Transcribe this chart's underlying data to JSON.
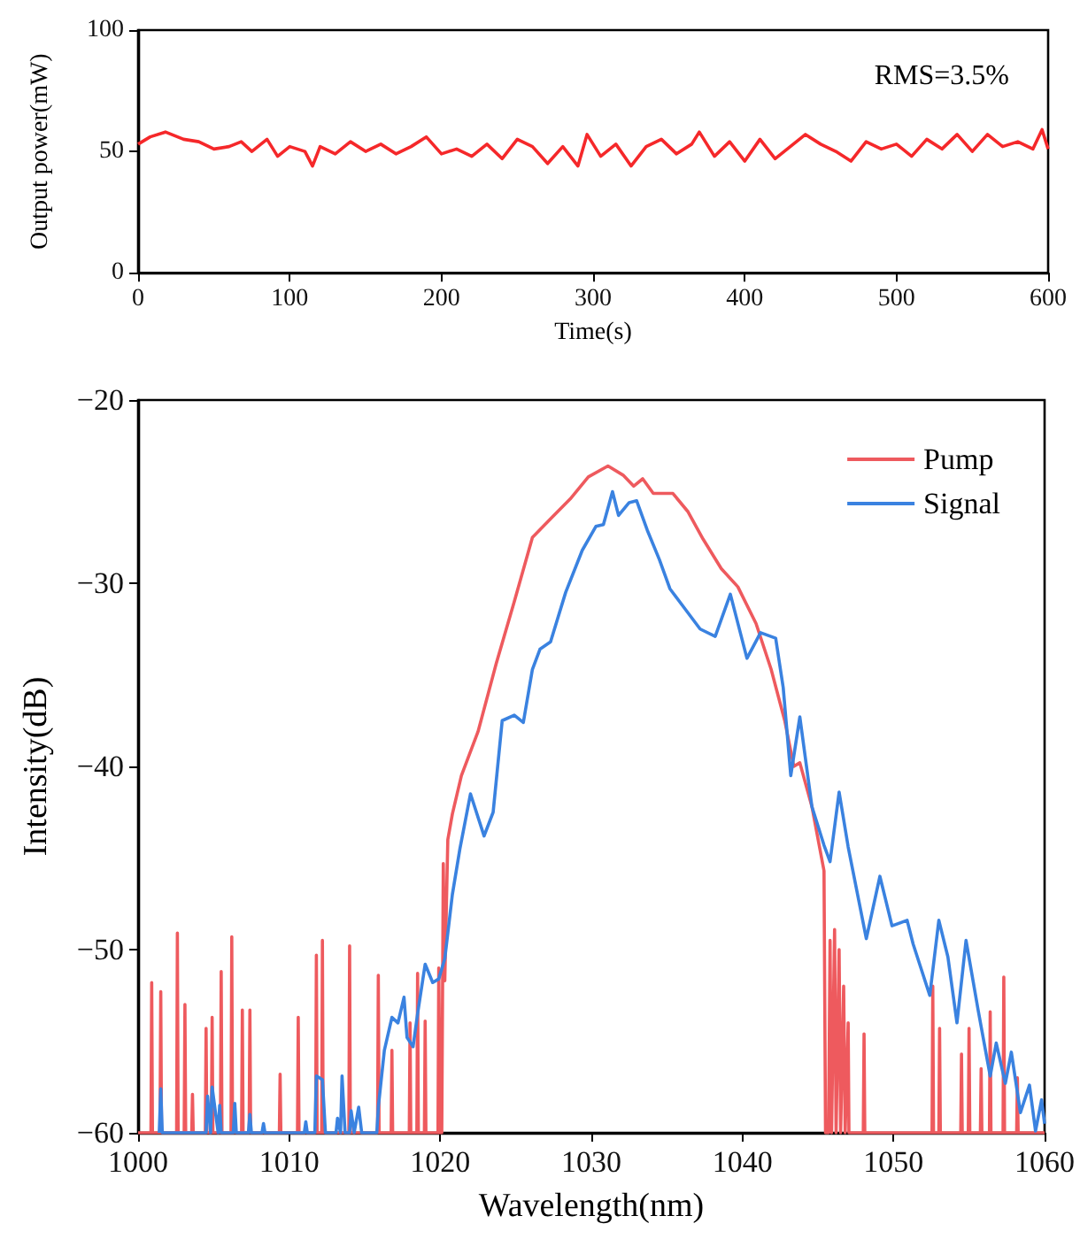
{
  "chart_data": [
    {
      "type": "line",
      "xlabel": "Time(s)",
      "ylabel": "Output power(mW)",
      "annotations": [
        "RMS=3.5%"
      ],
      "xlim": [
        0,
        600
      ],
      "xticks": [
        0,
        100,
        200,
        300,
        400,
        500,
        600
      ],
      "ylim": [
        0,
        100
      ],
      "yticks": [
        0,
        50,
        100
      ],
      "grid": false,
      "legend": false,
      "marker": "none",
      "series": [
        {
          "color": "#f5282a",
          "x": [
            0,
            8,
            18,
            30,
            40,
            50,
            60,
            68,
            75,
            85,
            92,
            100,
            110,
            115,
            120,
            130,
            140,
            150,
            160,
            170,
            180,
            190,
            200,
            210,
            220,
            230,
            240,
            250,
            260,
            270,
            280,
            290,
            296,
            305,
            315,
            325,
            335,
            345,
            355,
            365,
            370,
            380,
            390,
            400,
            410,
            420,
            430,
            440,
            450,
            460,
            470,
            480,
            490,
            500,
            510,
            520,
            530,
            540,
            550,
            560,
            570,
            580,
            590,
            596,
            600
          ],
          "values": [
            53,
            56,
            58,
            55,
            54,
            51,
            52,
            54,
            50,
            55,
            48,
            52,
            50,
            44,
            52,
            49,
            54,
            50,
            53,
            49,
            52,
            56,
            49,
            51,
            48,
            53,
            47,
            55,
            52,
            45,
            52,
            44,
            57,
            48,
            53,
            44,
            52,
            55,
            49,
            53,
            58,
            48,
            54,
            46,
            55,
            47,
            52,
            57,
            53,
            50,
            46,
            54,
            51,
            53,
            48,
            55,
            51,
            57,
            50,
            57,
            52,
            54,
            51,
            59,
            51
          ]
        }
      ]
    },
    {
      "type": "line",
      "xlabel": "Wavelength(nm)",
      "ylabel": "Intensity(dB)",
      "xlim": [
        1000,
        1060
      ],
      "xticks": [
        1000,
        1010,
        1020,
        1030,
        1040,
        1050,
        1060
      ],
      "ylim": [
        -60,
        -20
      ],
      "yticks": [
        -60,
        -50,
        -40,
        -30,
        -20
      ],
      "grid": false,
      "legend": "top right",
      "marker": "none",
      "series": [
        {
          "name": "Pump",
          "color": "#ee5a5e",
          "x": [
            1000,
            1000.85,
            1000.9,
            1000.95,
            1001.45,
            1001.5,
            1001.55,
            1002.55,
            1002.6,
            1002.65,
            1003.05,
            1003.1,
            1003.15,
            1003.55,
            1003.6,
            1003.65,
            1004.45,
            1004.5,
            1004.55,
            1004.85,
            1004.9,
            1004.95,
            1005.45,
            1005.5,
            1005.55,
            1006.15,
            1006.2,
            1006.25,
            1006.85,
            1006.9,
            1006.95,
            1007.35,
            1007.4,
            1007.45,
            1009.35,
            1009.4,
            1009.45,
            1010.55,
            1010.6,
            1010.65,
            1011.75,
            1011.8,
            1011.85,
            1012.15,
            1012.2,
            1012.25,
            1013.95,
            1014,
            1014.05,
            1015.85,
            1015.9,
            1015.95,
            1016.75,
            1016.8,
            1016.85,
            1017.95,
            1018,
            1018.05,
            1018.45,
            1018.5,
            1018.55,
            1018.95,
            1019,
            1019.05,
            1019.85,
            1019.9,
            1020,
            1020.1,
            1020.2,
            1020.3,
            1020.5,
            1020.8,
            1021.4,
            1022.5,
            1023.7,
            1024.9,
            1026.1,
            1027.4,
            1028.6,
            1029.8,
            1031.1,
            1032.1,
            1032.8,
            1033.4,
            1034.1,
            1035.4,
            1036.4,
            1037.4,
            1038.6,
            1039.7,
            1040.9,
            1041.9,
            1042.8,
            1043.4,
            1043.8,
            1044.6,
            1045.4,
            1045.5,
            1045.7,
            1045.8,
            1045.9,
            1046.1,
            1046.2,
            1046.4,
            1046.5,
            1046.7,
            1046.8,
            1047,
            1047.05,
            1048,
            1048.05,
            1048.1,
            1052.55,
            1052.6,
            1052.65,
            1053,
            1053.05,
            1053.1,
            1054.45,
            1054.5,
            1054.55,
            1054.95,
            1055,
            1055.05,
            1055.75,
            1055.8,
            1055.85,
            1056.35,
            1056.4,
            1056.45,
            1057.25,
            1057.3,
            1057.35,
            1058.15,
            1058.2,
            1058.25,
            1060
          ],
          "values": [
            -60,
            -60,
            -51.8,
            -60,
            -60,
            -52.3,
            -60,
            -60,
            -49.1,
            -60,
            -60,
            -53,
            -60,
            -60,
            -57.9,
            -60,
            -60,
            -54.3,
            -60,
            -60,
            -53.7,
            -60,
            -60,
            -51.2,
            -60,
            -60,
            -49.3,
            -60,
            -60,
            -53.3,
            -60,
            -60,
            -53.3,
            -60,
            -60,
            -56.8,
            -60,
            -60,
            -53.7,
            -60,
            -60,
            -50.3,
            -60,
            -60,
            -49.5,
            -60,
            -60,
            -49.8,
            -60,
            -60,
            -51.4,
            -60,
            -60,
            -55.5,
            -60,
            -60,
            -54,
            -60,
            -60,
            -51.3,
            -60,
            -60,
            -53.9,
            -60,
            -60,
            -51,
            -60,
            -60,
            -45.3,
            -51.7,
            -44,
            -42.6,
            -40.5,
            -38.1,
            -34.4,
            -31,
            -27.5,
            -26.4,
            -25.4,
            -24.2,
            -23.6,
            -24.1,
            -24.7,
            -24.3,
            -25.1,
            -25.1,
            -26.1,
            -27.6,
            -29.2,
            -30.2,
            -32.2,
            -34.7,
            -37.5,
            -40,
            -39.8,
            -42.2,
            -45.7,
            -60,
            -60,
            -49.5,
            -60,
            -48.9,
            -60,
            -50,
            -60,
            -52,
            -60,
            -54,
            -60,
            -60,
            -54.6,
            -60,
            -60,
            -52,
            -60,
            -60,
            -54.3,
            -60,
            -60,
            -55.7,
            -60,
            -60,
            -54.3,
            -60,
            -60,
            -56.5,
            -60,
            -60,
            -53.4,
            -60,
            -60,
            -51.5,
            -60,
            -60,
            -57,
            -60,
            -60
          ]
        },
        {
          "name": "Signal",
          "color": "#3a82e0",
          "x": [
            1001.4,
            1001.5,
            1001.6,
            1004.5,
            1004.6,
            1004.8,
            1004.9,
            1005.3,
            1005.4,
            1005.5,
            1006.3,
            1006.4,
            1006.5,
            1007.3,
            1007.4,
            1007.5,
            1008.2,
            1008.3,
            1008.4,
            1011,
            1011.1,
            1011.2,
            1011.7,
            1011.8,
            1012.2,
            1012.4,
            1013.1,
            1013.2,
            1013.4,
            1013.5,
            1013.7,
            1014,
            1014.1,
            1014.3,
            1014.6,
            1014.8,
            1015.8,
            1015.9,
            1016.3,
            1016.8,
            1017.2,
            1017.6,
            1017.8,
            1018.2,
            1018.5,
            1019,
            1019.5,
            1019.9,
            1020.3,
            1020.8,
            1021.3,
            1022,
            1022.9,
            1023.5,
            1024.1,
            1024.9,
            1025.5,
            1026.1,
            1026.6,
            1027.3,
            1028.3,
            1029.4,
            1030.3,
            1030.8,
            1031.4,
            1031.8,
            1032.5,
            1033,
            1033.7,
            1034.5,
            1035.2,
            1036.2,
            1037.2,
            1038.2,
            1039.2,
            1040.3,
            1041.2,
            1042.2,
            1042.7,
            1043.2,
            1043.8,
            1044.6,
            1045.4,
            1045.8,
            1046.4,
            1047,
            1048.2,
            1049.1,
            1049.9,
            1050.9,
            1051.3,
            1052.4,
            1053,
            1053.6,
            1054.2,
            1054.8,
            1055.6,
            1056.4,
            1056.8,
            1057.4,
            1057.8,
            1058.4,
            1059,
            1059.4,
            1059.8,
            1060
          ],
          "values": [
            -60,
            -57.6,
            -60,
            -60,
            -58,
            -60,
            -57.5,
            -60,
            -58.5,
            -60,
            -60,
            -58.4,
            -60,
            -60,
            -59,
            -60,
            -60,
            -59.5,
            -60,
            -60,
            -59.4,
            -60,
            -60,
            -56.9,
            -57.1,
            -60,
            -60,
            -59.2,
            -60,
            -56.9,
            -60,
            -60,
            -58.8,
            -60,
            -58.6,
            -60,
            -60,
            -58.6,
            -55.5,
            -53.7,
            -54,
            -52.6,
            -54.8,
            -55.3,
            -53.5,
            -50.8,
            -51.8,
            -51.6,
            -50.5,
            -47,
            -44.5,
            -41.5,
            -43.8,
            -42.5,
            -37.5,
            -37.2,
            -37.6,
            -34.7,
            -33.6,
            -33.2,
            -30.5,
            -28.2,
            -26.9,
            -26.8,
            -25,
            -26.3,
            -25.6,
            -25.5,
            -27.1,
            -28.7,
            -30.3,
            -31.4,
            -32.5,
            -32.9,
            -30.6,
            -34.1,
            -32.7,
            -33,
            -35.7,
            -40.5,
            -37.3,
            -42.2,
            -44.3,
            -45.2,
            -41.4,
            -44.4,
            -49.4,
            -46,
            -48.7,
            -48.4,
            -49.7,
            -52.5,
            -48.4,
            -50.4,
            -54,
            -49.5,
            -53.3,
            -56.9,
            -55.1,
            -57.3,
            -55.6,
            -58.9,
            -57.4,
            -59.9,
            -58.2,
            -59.5
          ]
        }
      ]
    }
  ]
}
